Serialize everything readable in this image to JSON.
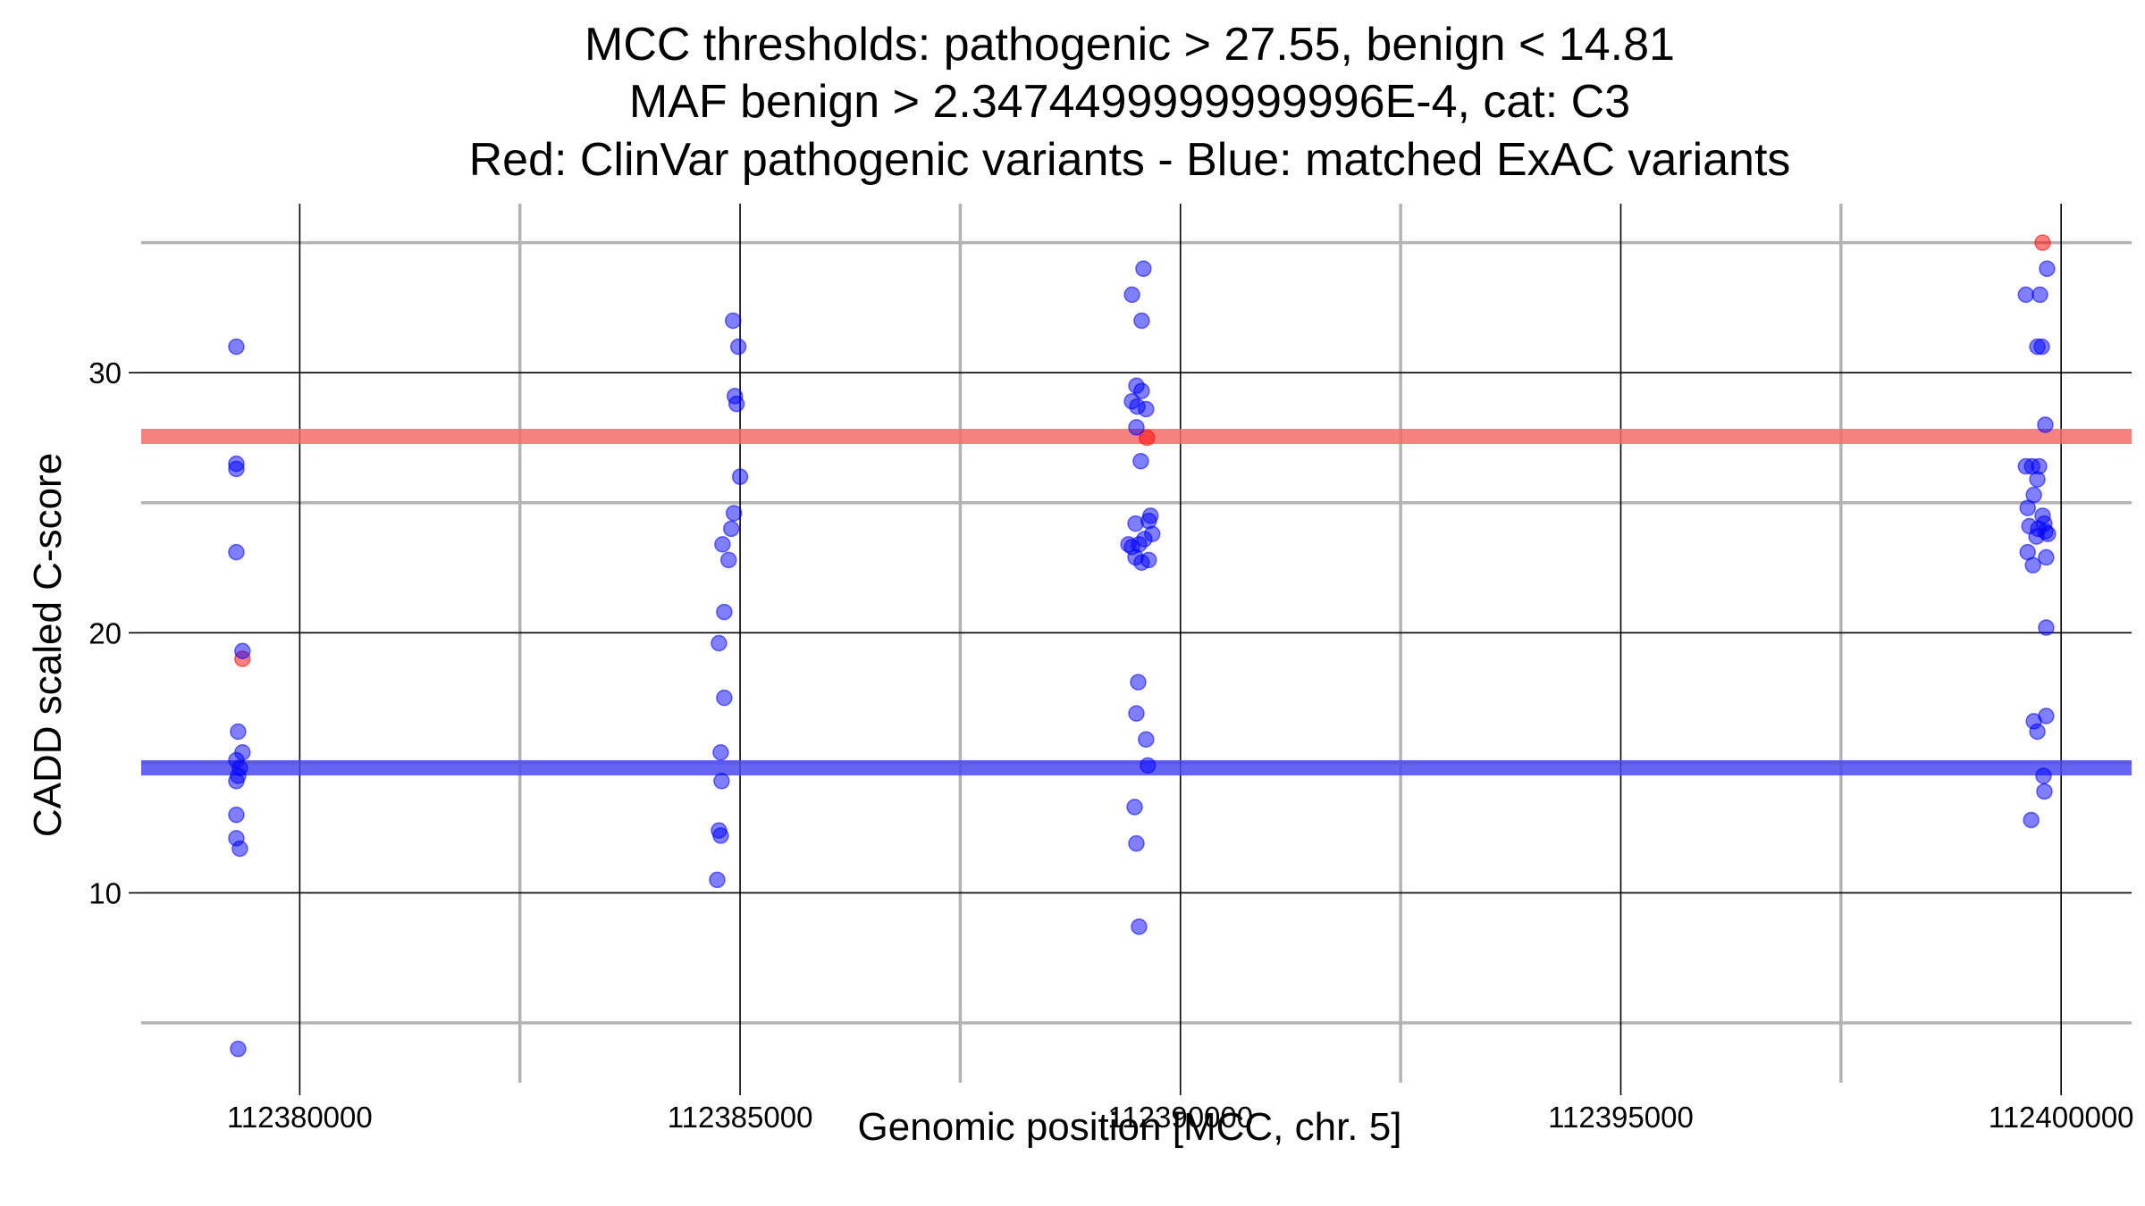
{
  "chart_data": {
    "type": "scatter",
    "title_lines": [
      "MCC thresholds: pathogenic > 27.55, benign < 14.81",
      "MAF benign > 2.3474499999999996E-4, cat: C3",
      "Red: ClinVar pathogenic variants - Blue: matched ExAC variants"
    ],
    "xlabel": "Genomic position [MCC, chr. 5]",
    "ylabel": "CADD scaled C-score",
    "xlim": [
      112378200,
      112400800
    ],
    "ylim": [
      2.7,
      36.5
    ],
    "x_ticks": [
      112380000,
      112385000,
      112390000,
      112395000,
      112400000
    ],
    "x_tick_labels": [
      "112380000",
      "112385000",
      "112390000",
      "112395000",
      "112400000"
    ],
    "x_minor_ticks": [
      112382500,
      112387500,
      112392500,
      112397500
    ],
    "y_ticks": [
      10,
      20,
      30
    ],
    "y_tick_labels": [
      "10",
      "20",
      "30"
    ],
    "y_minor_ticks": [
      5,
      15,
      25,
      35
    ],
    "grid": true,
    "thresholds": [
      {
        "name": "pathogenic",
        "value": 27.55,
        "color": "#f56b6b"
      },
      {
        "name": "benign",
        "value": 14.81,
        "color": "#4a4af0"
      }
    ],
    "colors": {
      "pathogenic": "#ff0000",
      "benign": "#0000ff",
      "major_grid": "#000000",
      "minor_grid": "#b3b3b3"
    },
    "series": [
      {
        "color": "#ff0000",
        "points": [
          [
            112379350,
            19.0
          ],
          [
            112389620,
            27.5
          ],
          [
            112399790,
            35.0
          ]
        ]
      },
      {
        "color": "#0000ff",
        "points": [
          [
            112379280,
            31.0
          ],
          [
            112379280,
            26.5
          ],
          [
            112379280,
            26.3
          ],
          [
            112379280,
            23.1
          ],
          [
            112379350,
            19.3
          ],
          [
            112379300,
            16.2
          ],
          [
            112379350,
            15.4
          ],
          [
            112379280,
            15.1
          ],
          [
            112379320,
            14.8
          ],
          [
            112379300,
            14.5
          ],
          [
            112379280,
            14.3
          ],
          [
            112379280,
            13.0
          ],
          [
            112379280,
            12.1
          ],
          [
            112379320,
            11.7
          ],
          [
            112379300,
            4.0
          ],
          [
            112384920,
            32.0
          ],
          [
            112384980,
            31.0
          ],
          [
            112384940,
            29.1
          ],
          [
            112384960,
            28.8
          ],
          [
            112385000,
            26.0
          ],
          [
            112384930,
            24.6
          ],
          [
            112384900,
            24.0
          ],
          [
            112384800,
            23.4
          ],
          [
            112384870,
            22.8
          ],
          [
            112384820,
            20.8
          ],
          [
            112384760,
            19.6
          ],
          [
            112384820,
            17.5
          ],
          [
            112384780,
            15.4
          ],
          [
            112384790,
            14.3
          ],
          [
            112384760,
            12.4
          ],
          [
            112384780,
            12.2
          ],
          [
            112384740,
            10.5
          ],
          [
            112389580,
            34.0
          ],
          [
            112389450,
            33.0
          ],
          [
            112389560,
            32.0
          ],
          [
            112389500,
            29.5
          ],
          [
            112389560,
            29.3
          ],
          [
            112389450,
            28.9
          ],
          [
            112389510,
            28.7
          ],
          [
            112389610,
            28.6
          ],
          [
            112389500,
            27.9
          ],
          [
            112389550,
            26.6
          ],
          [
            112389660,
            24.5
          ],
          [
            112389640,
            24.3
          ],
          [
            112389490,
            24.2
          ],
          [
            112389680,
            23.8
          ],
          [
            112389590,
            23.6
          ],
          [
            112389410,
            23.4
          ],
          [
            112389530,
            23.4
          ],
          [
            112389450,
            23.3
          ],
          [
            112389490,
            22.9
          ],
          [
            112389640,
            22.8
          ],
          [
            112389560,
            22.7
          ],
          [
            112389520,
            18.1
          ],
          [
            112389500,
            16.9
          ],
          [
            112389610,
            15.9
          ],
          [
            112389630,
            14.9
          ],
          [
            112389480,
            13.3
          ],
          [
            112389500,
            11.9
          ],
          [
            112389530,
            8.7
          ],
          [
            112399840,
            34.0
          ],
          [
            112399600,
            33.0
          ],
          [
            112399760,
            33.0
          ],
          [
            112399730,
            31.0
          ],
          [
            112399780,
            31.0
          ],
          [
            112399820,
            28.0
          ],
          [
            112399600,
            26.4
          ],
          [
            112399670,
            26.4
          ],
          [
            112399750,
            26.4
          ],
          [
            112399730,
            25.9
          ],
          [
            112399690,
            25.3
          ],
          [
            112399620,
            24.8
          ],
          [
            112399790,
            24.5
          ],
          [
            112399810,
            24.2
          ],
          [
            112399640,
            24.1
          ],
          [
            112399740,
            24.0
          ],
          [
            112399820,
            23.9
          ],
          [
            112399850,
            23.8
          ],
          [
            112399720,
            23.7
          ],
          [
            112399620,
            23.1
          ],
          [
            112399830,
            22.9
          ],
          [
            112399680,
            22.6
          ],
          [
            112399830,
            20.2
          ],
          [
            112399830,
            16.8
          ],
          [
            112399690,
            16.6
          ],
          [
            112399730,
            16.2
          ],
          [
            112399800,
            14.5
          ],
          [
            112399810,
            13.9
          ],
          [
            112399660,
            12.8
          ]
        ]
      }
    ]
  }
}
